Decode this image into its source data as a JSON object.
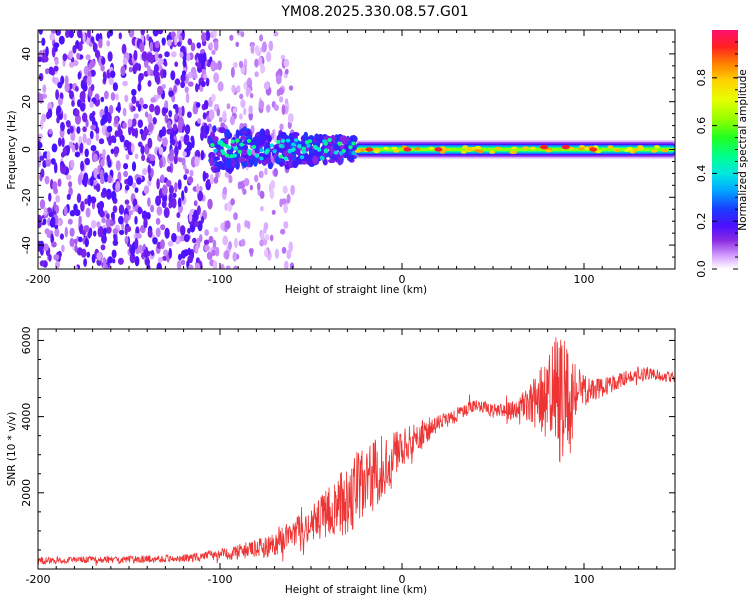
{
  "title": "YM08.2025.330.08.57.G01",
  "chart_data": [
    {
      "type": "heatmap",
      "xlabel": "Height of straight line (km)",
      "ylabel": "Frequency (Hz)",
      "xlim": [
        -200,
        150
      ],
      "ylim": [
        -50,
        50
      ],
      "xticks": [
        -200,
        -100,
        0,
        100
      ],
      "yticks": [
        -40,
        -20,
        0,
        20,
        40
      ],
      "colorbar": {
        "label": "Normalized spectral amplitude",
        "range": [
          0.0,
          1.0
        ],
        "ticks": [
          "0.0",
          "0.2",
          "0.4",
          "0.6",
          "0.8"
        ],
        "tick_values": [
          0.0,
          0.2,
          0.4,
          0.6,
          0.8
        ]
      },
      "regions": [
        {
          "name": "noise",
          "x_range": [
            -200,
            -105
          ],
          "freq_range": [
            -50,
            50
          ],
          "amplitude": 0.12
        },
        {
          "name": "sparse-noise",
          "x_range": [
            -105,
            -60
          ],
          "freq_range": [
            -50,
            50
          ],
          "amplitude": 0.05
        },
        {
          "name": "onset-signal",
          "x_range": [
            -105,
            -25
          ],
          "freq_range": [
            -7,
            7
          ],
          "amplitude": 0.35
        },
        {
          "name": "carrier-line",
          "x_range": [
            -25,
            150
          ],
          "freq_range": [
            -3,
            3
          ],
          "amplitude": 0.75
        }
      ],
      "peaks": [
        {
          "x": -18,
          "f": 0,
          "amplitude": 0.92
        },
        {
          "x": 3,
          "f": 0,
          "amplitude": 0.95
        },
        {
          "x": 20,
          "f": 0,
          "amplitude": 0.95
        },
        {
          "x": 78,
          "f": 1,
          "amplitude": 0.93
        },
        {
          "x": 90,
          "f": 1,
          "amplitude": 0.95
        },
        {
          "x": 105,
          "f": 0,
          "amplitude": 0.92
        }
      ]
    },
    {
      "type": "line",
      "xlabel": "Height of straight line (km)",
      "ylabel": "SNR (10 * v/v)",
      "xlim": [
        -200,
        150
      ],
      "ylim": [
        0,
        6300
      ],
      "xticks": [
        -200,
        -100,
        0,
        100
      ],
      "yticks": [
        2000,
        4000,
        6000
      ],
      "series": [
        {
          "name": "SNR",
          "color": "#ee3333",
          "x": [
            -200,
            -180,
            -160,
            -140,
            -120,
            -100,
            -90,
            -80,
            -70,
            -60,
            -50,
            -40,
            -35,
            -30,
            -25,
            -20,
            -15,
            -10,
            -5,
            0,
            5,
            10,
            15,
            20,
            25,
            30,
            35,
            40,
            45,
            50,
            55,
            60,
            65,
            70,
            75,
            80,
            85,
            88,
            90,
            92,
            95,
            100,
            105,
            110,
            115,
            120,
            125,
            130,
            135,
            140,
            145,
            150
          ],
          "y": [
            220,
            240,
            240,
            260,
            280,
            380,
            450,
            520,
            650,
            900,
            1150,
            1500,
            1650,
            1900,
            2100,
            2200,
            2500,
            2750,
            3000,
            3150,
            3350,
            3450,
            3700,
            3800,
            3950,
            4050,
            4150,
            4300,
            4250,
            4150,
            4200,
            4150,
            4250,
            4350,
            4400,
            4500,
            4550,
            4300,
            4250,
            4400,
            4550,
            4650,
            4700,
            4750,
            4850,
            4950,
            5050,
            5100,
            5150,
            5100,
            5050,
            5000
          ],
          "amp": [
            100,
            90,
            90,
            100,
            100,
            160,
            200,
            260,
            320,
            400,
            500,
            650,
            800,
            1000,
            1100,
            900,
            900,
            850,
            700,
            500,
            420,
            380,
            320,
            250,
            220,
            200,
            180,
            160,
            160,
            180,
            200,
            250,
            350,
            500,
            800,
            1100,
            1600,
            1800,
            1700,
            1500,
            900,
            500,
            300,
            250,
            220,
            200,
            180,
            160,
            160,
            150,
            150,
            150
          ]
        }
      ]
    }
  ]
}
